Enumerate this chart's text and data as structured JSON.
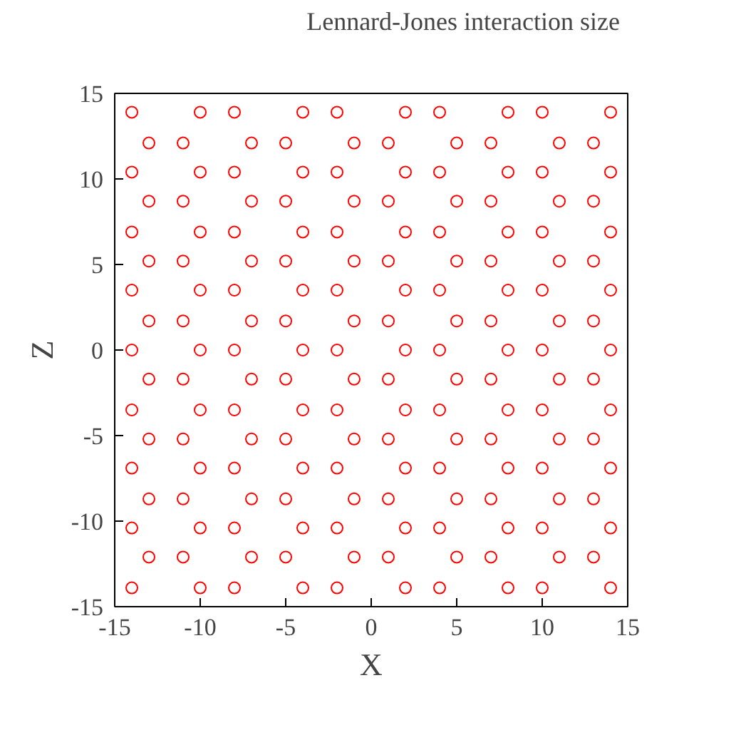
{
  "chart_data": {
    "type": "scatter",
    "xlabel": "X",
    "ylabel": "Z",
    "xlim": [
      -15,
      15
    ],
    "ylim": [
      -15,
      15
    ],
    "xticks": [
      -15,
      -10,
      -5,
      0,
      5,
      10,
      15
    ],
    "yticks": [
      -15,
      -10,
      -5,
      0,
      5,
      10,
      15
    ],
    "grid": false,
    "legend": "top right",
    "marker": "circle",
    "series": [
      {
        "name": "Lennard-Jones interaction size",
        "color": "#ff0000",
        "x": [
          -14,
          -10,
          -8,
          -4,
          -2,
          2,
          4,
          8,
          10,
          14,
          -13,
          -11,
          -7,
          -5,
          -1,
          1,
          5,
          7,
          11,
          13,
          -14,
          -10,
          -8,
          -4,
          -2,
          2,
          4,
          8,
          10,
          14,
          -13,
          -11,
          -7,
          -5,
          -1,
          1,
          5,
          7,
          11,
          13,
          -14,
          -10,
          -8,
          -4,
          -2,
          2,
          4,
          8,
          10,
          14,
          -13,
          -11,
          -7,
          -5,
          -1,
          1,
          5,
          7,
          11,
          13,
          -14,
          -10,
          -8,
          -4,
          -2,
          2,
          4,
          8,
          10,
          14,
          -13,
          -11,
          -7,
          -5,
          -1,
          1,
          5,
          7,
          11,
          13,
          -14,
          -10,
          -8,
          -4,
          -2,
          2,
          4,
          8,
          10,
          14,
          -13,
          -11,
          -7,
          -5,
          -1,
          1,
          5,
          7,
          11,
          13,
          -14,
          -10,
          -8,
          -4,
          -2,
          2,
          4,
          8,
          10,
          14,
          -13,
          -11,
          -7,
          -5,
          -1,
          1,
          5,
          7,
          11,
          13,
          -14,
          -10,
          -8,
          -4,
          -2,
          2,
          4,
          8,
          10,
          14,
          -13,
          -11,
          -7,
          -5,
          -1,
          1,
          5,
          7,
          11,
          13,
          -14,
          -10,
          -8,
          -4,
          -2,
          2,
          4,
          8,
          10,
          14,
          -13,
          -11,
          -7,
          -5,
          -1,
          1,
          5,
          7,
          11,
          13,
          -14,
          -10,
          -8,
          -4,
          -2,
          2,
          4,
          8,
          10,
          14
        ],
        "values": [
          13.9,
          13.9,
          13.9,
          13.9,
          13.9,
          13.9,
          13.9,
          13.9,
          13.9,
          13.9,
          12.1,
          12.1,
          12.1,
          12.1,
          12.1,
          12.1,
          12.1,
          12.1,
          12.1,
          12.1,
          10.4,
          10.4,
          10.4,
          10.4,
          10.4,
          10.4,
          10.4,
          10.4,
          10.4,
          10.4,
          8.7,
          8.7,
          8.7,
          8.7,
          8.7,
          8.7,
          8.7,
          8.7,
          8.7,
          8.7,
          6.9,
          6.9,
          6.9,
          6.9,
          6.9,
          6.9,
          6.9,
          6.9,
          6.9,
          6.9,
          5.2,
          5.2,
          5.2,
          5.2,
          5.2,
          5.2,
          5.2,
          5.2,
          5.2,
          5.2,
          3.5,
          3.5,
          3.5,
          3.5,
          3.5,
          3.5,
          3.5,
          3.5,
          3.5,
          3.5,
          1.7,
          1.7,
          1.7,
          1.7,
          1.7,
          1.7,
          1.7,
          1.7,
          1.7,
          1.7,
          0,
          0,
          0,
          0,
          0,
          0,
          0,
          0,
          0,
          0,
          -1.7,
          -1.7,
          -1.7,
          -1.7,
          -1.7,
          -1.7,
          -1.7,
          -1.7,
          -1.7,
          -1.7,
          -3.5,
          -3.5,
          -3.5,
          -3.5,
          -3.5,
          -3.5,
          -3.5,
          -3.5,
          -3.5,
          -3.5,
          -5.2,
          -5.2,
          -5.2,
          -5.2,
          -5.2,
          -5.2,
          -5.2,
          -5.2,
          -5.2,
          -5.2,
          -6.9,
          -6.9,
          -6.9,
          -6.9,
          -6.9,
          -6.9,
          -6.9,
          -6.9,
          -6.9,
          -6.9,
          -8.7,
          -8.7,
          -8.7,
          -8.7,
          -8.7,
          -8.7,
          -8.7,
          -8.7,
          -8.7,
          -8.7,
          -10.4,
          -10.4,
          -10.4,
          -10.4,
          -10.4,
          -10.4,
          -10.4,
          -10.4,
          -10.4,
          -10.4,
          -12.1,
          -12.1,
          -12.1,
          -12.1,
          -12.1,
          -12.1,
          -12.1,
          -12.1,
          -12.1,
          -12.1,
          -13.9,
          -13.9,
          -13.9,
          -13.9,
          -13.9,
          -13.9,
          -13.9,
          -13.9,
          -13.9,
          -13.9
        ]
      }
    ]
  }
}
